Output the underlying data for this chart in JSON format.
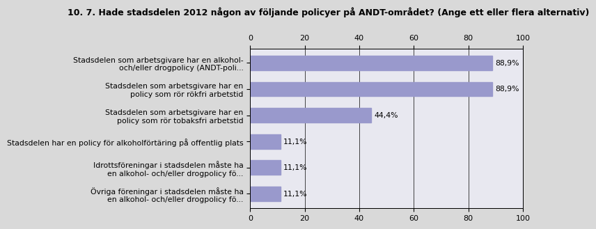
{
  "title": "10. 7. Hade stadsdelen 2012 någon av följande policyer på ANDT-området? (Ange ett eller flera alternativ)",
  "categories": [
    "Stadsdelen som arbetsgivare har en alkohol-\noch/eller drogpolicy (ANDT-poli...",
    "Stadsdelen som arbetsgivare har en\npolicy som rör rökfri arbetstid",
    "Stadsdelen som arbetsgivare har en\npolicy som rör tobaksfri arbetstid",
    "Stadsdelen har en policy för alkoholförtäring på offentlig plats",
    "Idrottsföreningar i stadsdelen måste ha\nen alkohol- och/eller drogpolicy fö...",
    "Övriga föreningar i stadsdelen måste ha\nen alkohol- och/eller drogpolicy fö..."
  ],
  "values": [
    88.9,
    88.9,
    44.4,
    11.1,
    11.1,
    11.1
  ],
  "value_labels": [
    "88,9%",
    "88,9%",
    "44,4%",
    "11,1%",
    "11,1%",
    "11,1%"
  ],
  "bar_color": "#9999cc",
  "bg_color": "#d9d9d9",
  "plot_bg_color": "#e8e8f0",
  "title_fontsize": 9.0,
  "label_fontsize": 7.8,
  "tick_fontsize": 8.0,
  "xlim": [
    0,
    100
  ],
  "xticks": [
    0,
    20,
    40,
    60,
    80,
    100
  ]
}
